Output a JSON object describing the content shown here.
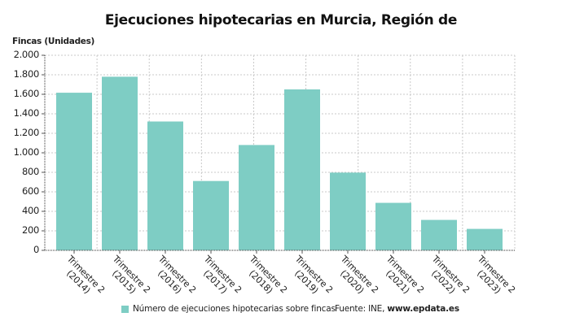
{
  "chart_data": {
    "type": "bar",
    "title": "Ejecuciones hipotecarias en Murcia, Región de",
    "xlabel": "",
    "ylabel": "Fincas (Unidades)",
    "categories": [
      "Trimestre 2 (2014)",
      "Trimestre 2 (2015)",
      "Trimestre 2 (2016)",
      "Trimestre 2 (2017)",
      "Trimestre 2 (2018)",
      "Trimestre 2 (2019)",
      "Trimestre 2 (2020)",
      "Trimestre 2 (2021)",
      "Trimestre 2 (2022)",
      "Trimestre 2 (2023)"
    ],
    "series": [
      {
        "name": "Número de ejecuciones hipotecarias sobre fincas",
        "color": "#7ecdc4",
        "values": [
          1616,
          1780,
          1321,
          711,
          1080,
          1650,
          797,
          487,
          312,
          220
        ]
      }
    ],
    "ylim": [
      0,
      2000
    ],
    "yticks": [
      "0",
      "200",
      "400",
      "600",
      "800",
      "1.000",
      "1.200",
      "1.400",
      "1.600",
      "1.800",
      "2.000"
    ],
    "ytick_values": [
      0,
      200,
      400,
      600,
      800,
      1000,
      1200,
      1400,
      1600,
      1800,
      2000
    ],
    "grid": true,
    "legend_position": "bottom"
  },
  "xtick_lines": [
    {
      "line1": "Trimestre 2",
      "line2": "(2014)"
    },
    {
      "line1": "Trimestre 2",
      "line2": "(2015)"
    },
    {
      "line1": "Trimestre 2",
      "line2": "(2016)"
    },
    {
      "line1": "Trimestre 2",
      "line2": "(2017)"
    },
    {
      "line1": "Trimestre 2",
      "line2": "(2018)"
    },
    {
      "line1": "Trimestre 2",
      "line2": "(2019)"
    },
    {
      "line1": "Trimestre 2",
      "line2": "(2020)"
    },
    {
      "line1": "Trimestre 2",
      "line2": "(2021)"
    },
    {
      "line1": "Trimestre 2",
      "line2": "(2022)"
    },
    {
      "line1": "Trimestre 2",
      "line2": "(2023)"
    }
  ],
  "legend": {
    "label": "Número de ejecuciones hipotecarias sobre fincas",
    "color": "#7ecdc4"
  },
  "source": {
    "prefix": "Fuente: INE, ",
    "site": "www.epdata.es"
  },
  "colors": {
    "bar": "#7ecdc4",
    "grid": "#c8c8c8",
    "axis": "#555555"
  }
}
